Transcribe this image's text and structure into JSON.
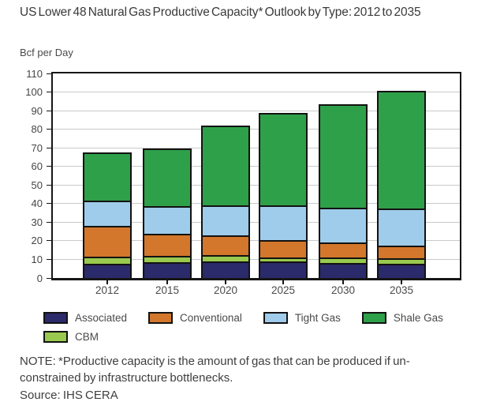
{
  "header": {
    "title": "US Lower 48 Natural Gas Productive Capacity* Outlook by Type: 2012 to 2035",
    "units_label": "Bcf per Day"
  },
  "chart_data": {
    "type": "bar",
    "stacked": true,
    "title": "US Lower 48 Natural Gas Productive Capacity* Outlook by Type: 2012 to 2035",
    "ylabel": "Bcf per Day",
    "xlabel": "",
    "ylim": [
      0,
      110
    ],
    "ytick_interval": 10,
    "grid": "horizontal",
    "legend_position": "bottom",
    "categories": [
      "2012",
      "2015",
      "2020",
      "2025",
      "2030",
      "2035"
    ],
    "series": [
      {
        "name": "Associated",
        "color": "#2b2a6a",
        "values": [
          7.5,
          8.5,
          9.0,
          9.0,
          8.0,
          7.5
        ]
      },
      {
        "name": "CBM",
        "color": "#99c94e",
        "values": [
          4.0,
          3.5,
          3.5,
          2.0,
          3.0,
          3.0
        ]
      },
      {
        "name": "Conventional",
        "color": "#d2772b",
        "values": [
          16.5,
          12.0,
          10.5,
          9.5,
          8.0,
          7.0
        ]
      },
      {
        "name": "Tight Gas",
        "color": "#9fccea",
        "values": [
          13.5,
          14.5,
          16.0,
          18.5,
          19.0,
          20.0
        ]
      },
      {
        "name": "Shale Gas",
        "color": "#2fa04a",
        "values": [
          25.0,
          30.5,
          42.0,
          49.0,
          54.5,
          62.5
        ]
      }
    ],
    "totals": [
      66.5,
      69,
      81,
      88,
      92.5,
      100
    ],
    "stack_order_bottom_to_top": [
      "Associated",
      "CBM",
      "Conventional",
      "Tight Gas",
      "Shale Gas"
    ]
  },
  "legend": {
    "row1": [
      "Associated",
      "Conventional",
      "Tight Gas",
      "Shale Gas"
    ],
    "row2": [
      "CBM"
    ]
  },
  "footer": {
    "note_line1": "NOTE: *Productive capacity is the amount of gas that can be produced if un-",
    "note_line2": "constrained by infrastructure bottlenecks.",
    "source": "Source: IHS CERA"
  },
  "colors": {
    "axis_frame": "#161616",
    "gridline": "#c9c9c9",
    "text": "#3e3e3e"
  }
}
